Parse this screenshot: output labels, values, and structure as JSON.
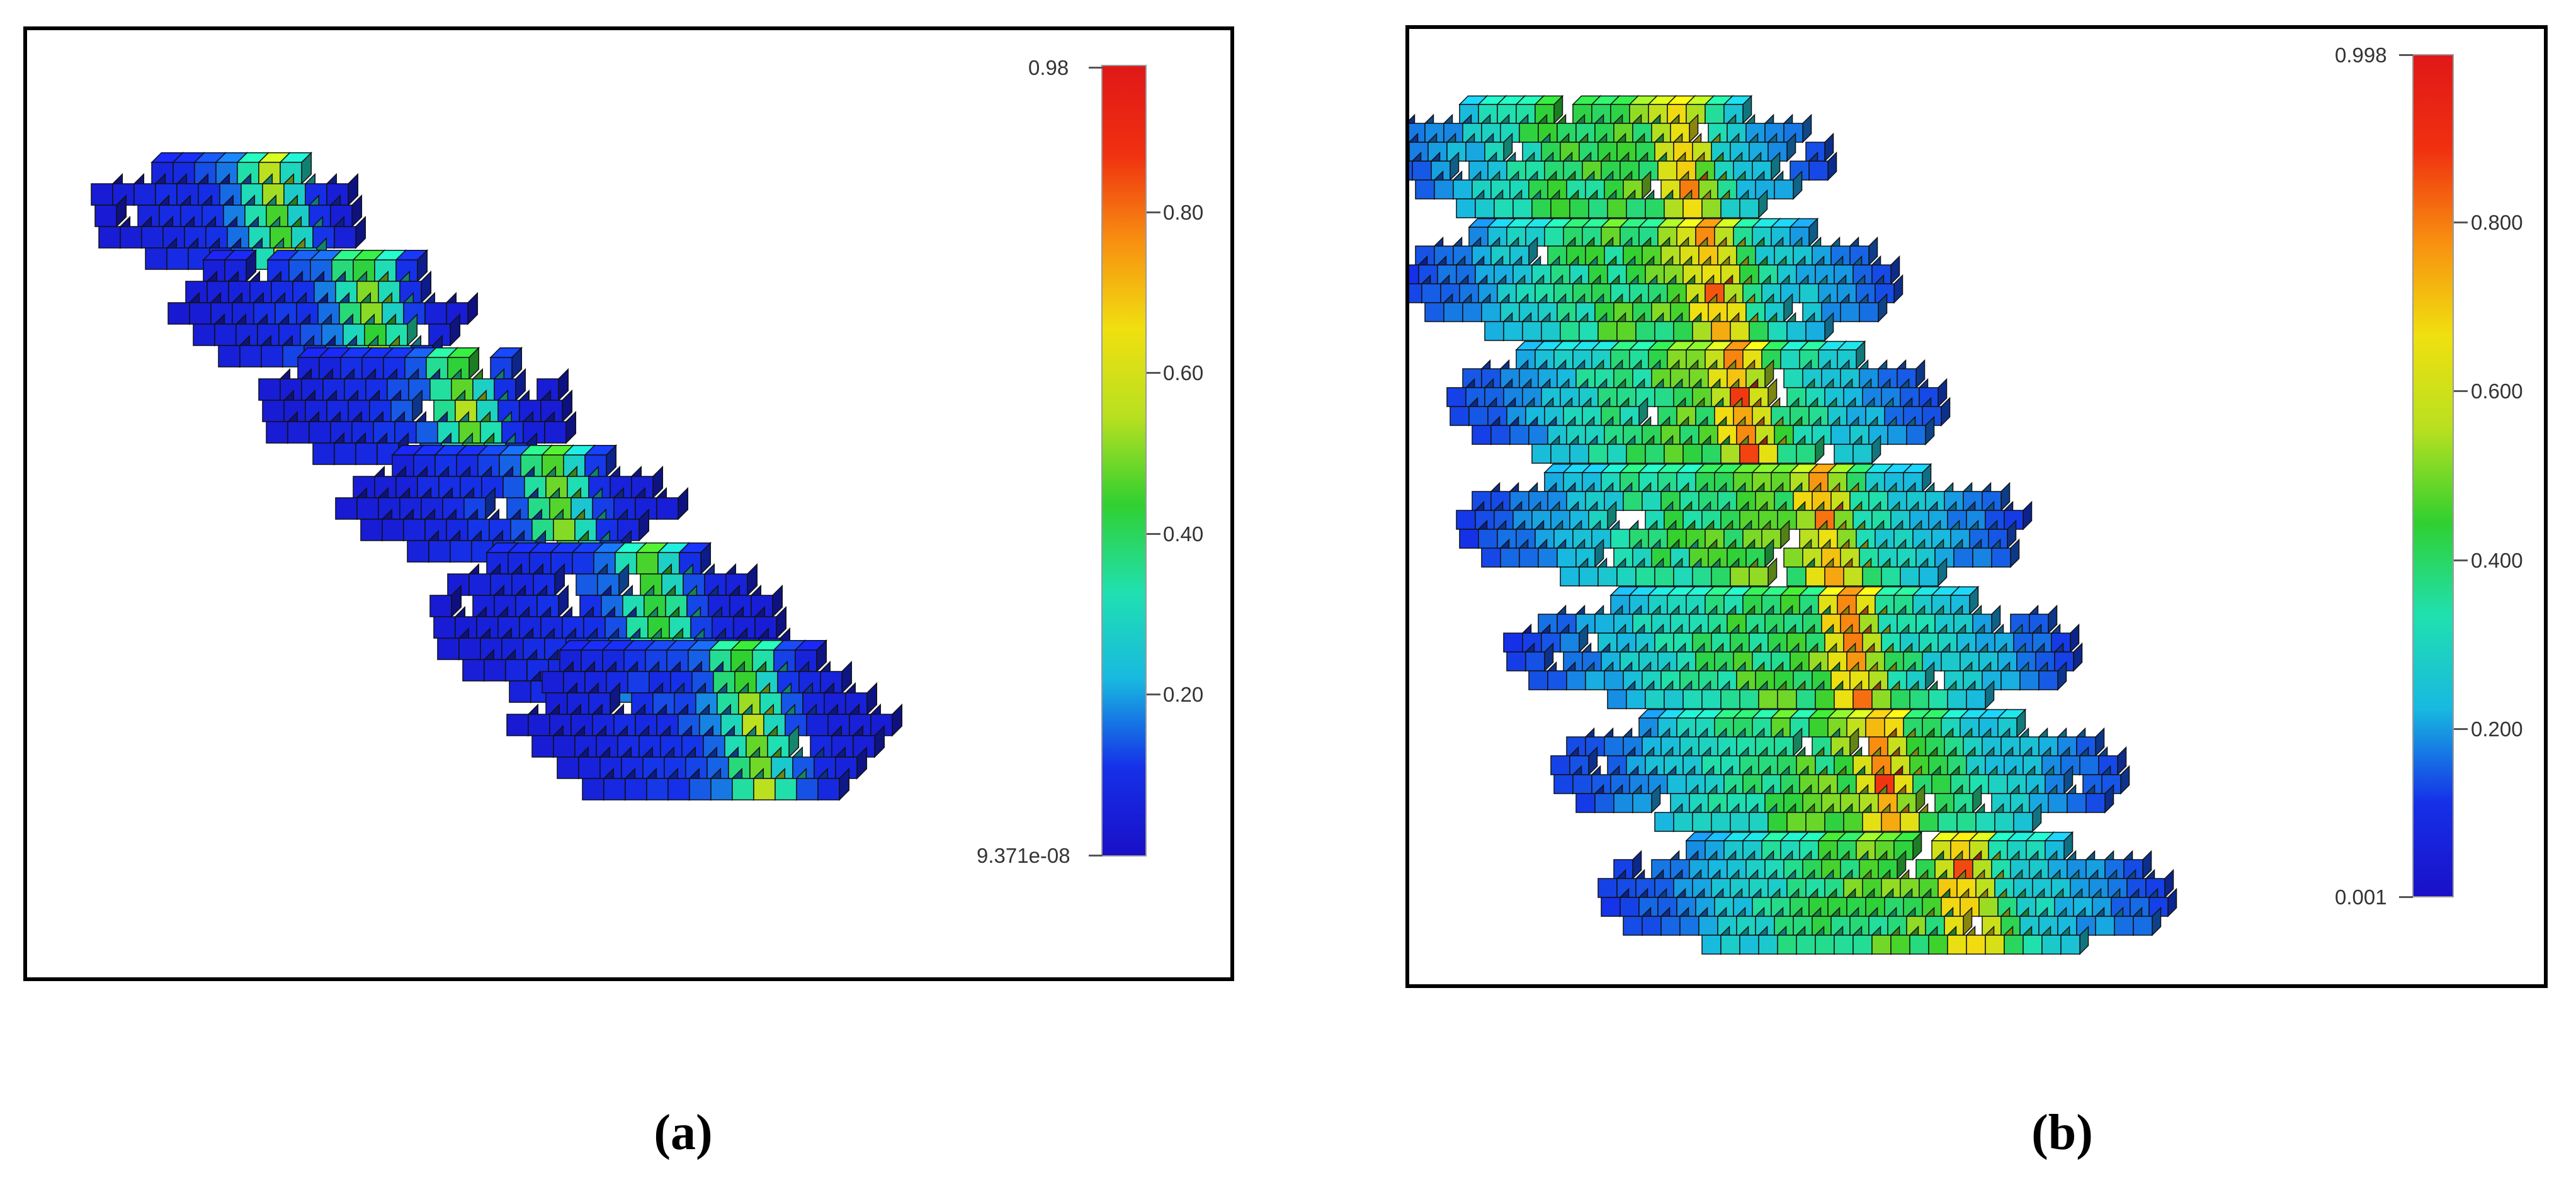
{
  "panels": [
    {
      "id": "a",
      "caption": "(a)",
      "colorbar": {
        "max_label": "0.98",
        "min_label": "9.371e-08",
        "ticks": [
          {
            "label": "0.80",
            "value": 0.8
          },
          {
            "label": "0.60",
            "value": 0.6
          },
          {
            "label": "0.40",
            "value": 0.4
          },
          {
            "label": "0.20",
            "value": 0.2
          }
        ],
        "range": [
          0.0,
          0.98
        ]
      },
      "slices": 6,
      "intensity": "low"
    },
    {
      "id": "b",
      "caption": "(b)",
      "colorbar": {
        "max_label": "0.998",
        "min_label": "0.001",
        "ticks": [
          {
            "label": "0.800",
            "value": 0.8
          },
          {
            "label": "0.600",
            "value": 0.6
          },
          {
            "label": "0.400",
            "value": 0.4
          },
          {
            "label": "0.200",
            "value": 0.2
          }
        ],
        "range": [
          0.001,
          0.998
        ]
      },
      "slices": 7,
      "intensity": "high"
    }
  ],
  "colormap": [
    "#1a10c8",
    "#1530e8",
    "#18b8e0",
    "#20e0b0",
    "#30d030",
    "#b8e020",
    "#f0e010",
    "#f89010",
    "#f03010",
    "#e01818"
  ]
}
